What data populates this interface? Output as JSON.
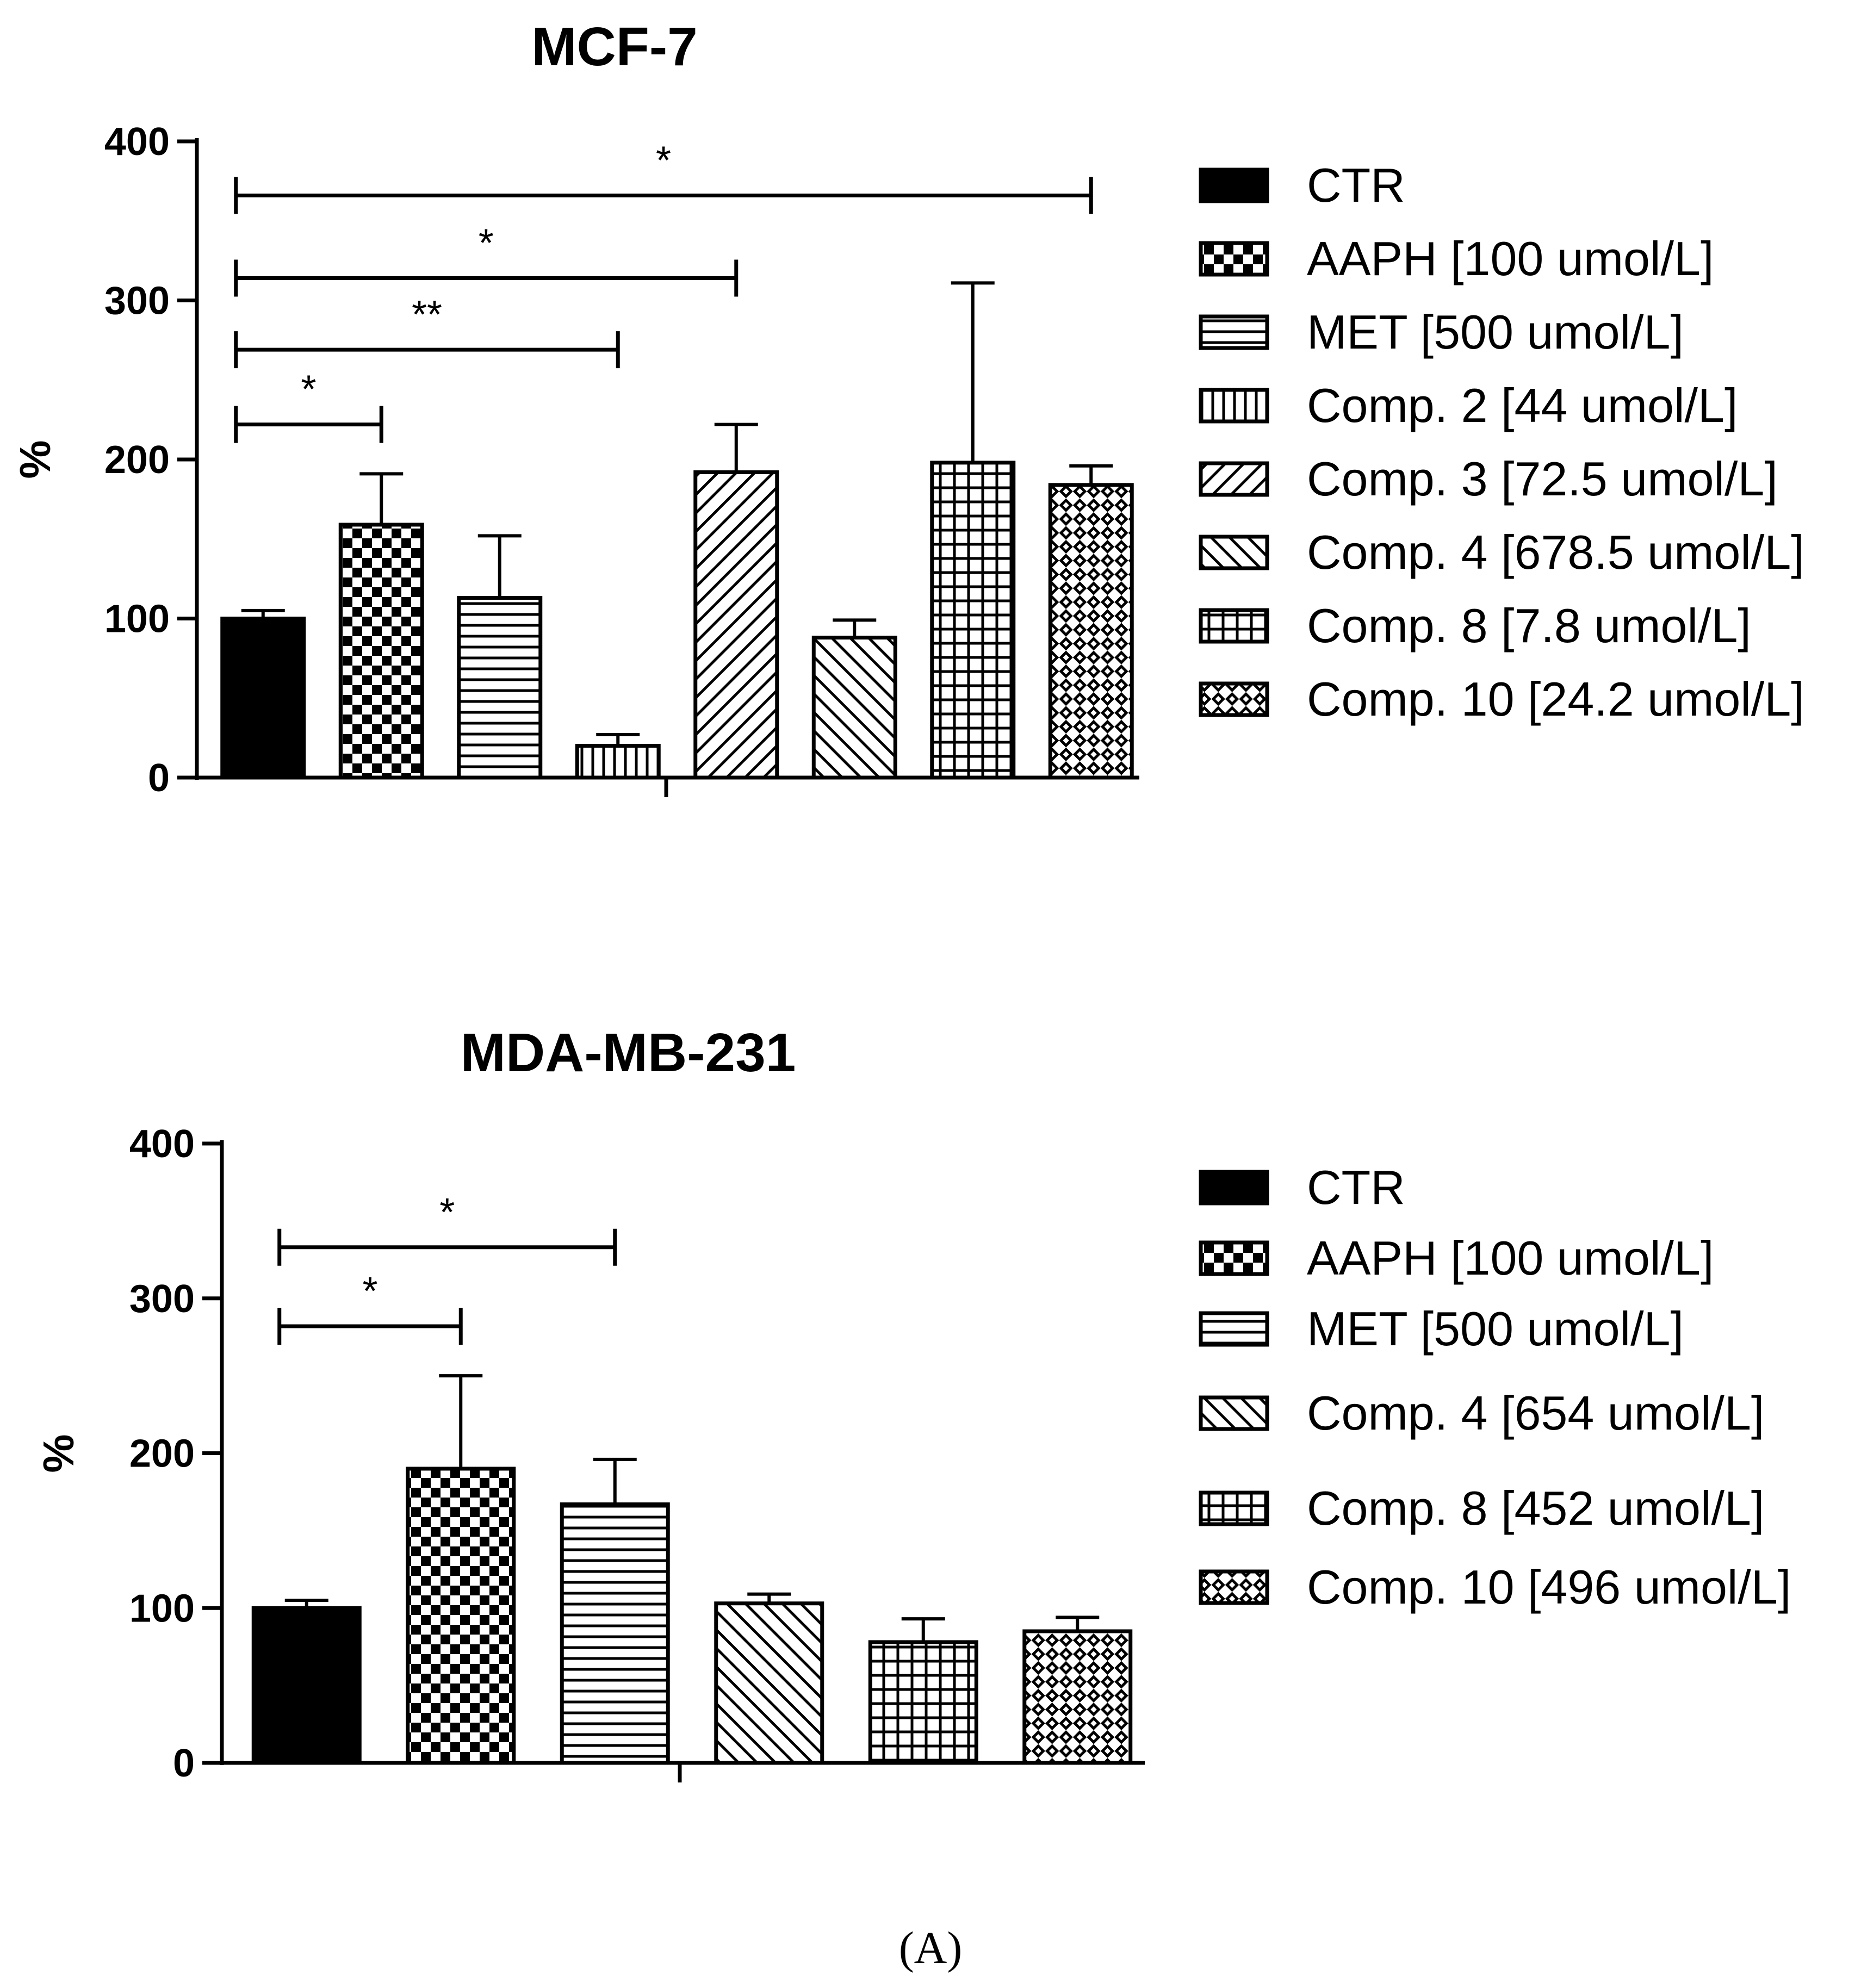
{
  "figure_caption": "(A)",
  "chart_data": [
    {
      "type": "bar",
      "title": "MCF-7",
      "xlabel": "",
      "ylabel": "%",
      "ylim": [
        0,
        400
      ],
      "yticks": [
        0,
        100,
        200,
        300,
        400
      ],
      "categories": [
        "CTR",
        "AAPH [100 umol/L]",
        "MET [500 umol/L]",
        "Comp. 2 [44 umol/L]",
        "Comp. 3 [72.5 umol/L]",
        "Comp. 4 [678.5 umol/L]",
        "Comp. 8 [7.8 umol/L]",
        "Comp. 10 [24.2 umol/L]"
      ],
      "patterns": [
        "solid",
        "checker",
        "hlines",
        "vlines",
        "diag-right",
        "diag-left",
        "grid",
        "crosshatch"
      ],
      "values": [
        100,
        159,
        113,
        20,
        192,
        88,
        198,
        184
      ],
      "errors": [
        5,
        32,
        39,
        7,
        30,
        11,
        113,
        12
      ],
      "legend_position": "right",
      "significance": [
        {
          "from": 0,
          "to": 1,
          "label": "*",
          "y": 222
        },
        {
          "from": 0,
          "to": 3,
          "label": "**",
          "y": 269
        },
        {
          "from": 0,
          "to": 4,
          "label": "*",
          "y": 314
        },
        {
          "from": 0,
          "to": 7,
          "label": "*",
          "y": 366
        }
      ]
    },
    {
      "type": "bar",
      "title": "MDA-MB-231",
      "xlabel": "",
      "ylabel": "%",
      "ylim": [
        0,
        400
      ],
      "yticks": [
        0,
        100,
        200,
        300,
        400
      ],
      "categories": [
        "CTR",
        "AAPH [100 umol/L]",
        "MET [500 umol/L]",
        "Comp. 4 [654 umol/L]",
        "Comp. 8 [452 umol/L]",
        "Comp. 10 [496 umol/L]"
      ],
      "patterns": [
        "solid",
        "checker",
        "hlines",
        "diag-left",
        "grid",
        "crosshatch"
      ],
      "values": [
        100,
        190,
        167,
        103,
        78,
        85
      ],
      "errors": [
        5,
        60,
        29,
        6,
        15,
        9
      ],
      "legend_position": "right",
      "significance": [
        {
          "from": 0,
          "to": 1,
          "label": "*",
          "y": 282
        },
        {
          "from": 0,
          "to": 2,
          "label": "*",
          "y": 333
        }
      ]
    }
  ]
}
